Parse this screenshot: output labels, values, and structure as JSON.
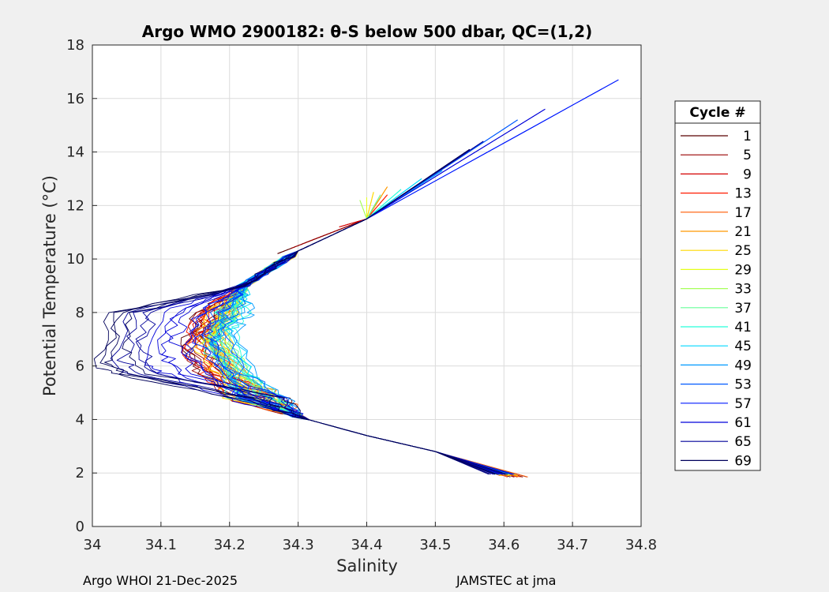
{
  "chart_data": {
    "type": "line",
    "title": "Argo WMO 2900182: θ-S below 500 dbar,  QC=(1,2)",
    "xlabel": "Salinity",
    "ylabel": "Potential Temperature (°C)",
    "xlim": [
      34,
      34.8
    ],
    "ylim": [
      0,
      18
    ],
    "xticks": [
      "34",
      "34.1",
      "34.2",
      "34.3",
      "34.4",
      "34.5",
      "34.6",
      "34.7",
      "34.8"
    ],
    "yticks": [
      "0",
      "2",
      "4",
      "6",
      "8",
      "10",
      "12",
      "14",
      "16",
      "18"
    ],
    "grid": true,
    "legend": {
      "title": "Cycle #",
      "placement": "right-outside",
      "entries": [
        "1",
        "5",
        "9",
        "13",
        "17",
        "21",
        "25",
        "29",
        "33",
        "37",
        "41",
        "45",
        "49",
        "53",
        "57",
        "61",
        "65",
        "69"
      ]
    },
    "series": [
      {
        "name": "1",
        "color": "#5a0000",
        "sal_min": 34.148,
        "t_min": 6.9,
        "s_top": 34.27,
        "t_top": 10.2,
        "s_bot": 34.62,
        "t_bot": 1.85
      },
      {
        "name": "5",
        "color": "#990000",
        "sal_min": 34.15,
        "t_min": 6.9,
        "s_top": 34.29,
        "t_top": 10.4,
        "s_bot": 34.62,
        "t_bot": 1.85
      },
      {
        "name": "9",
        "color": "#d40000",
        "sal_min": 34.155,
        "t_min": 7.0,
        "s_top": 34.36,
        "t_top": 11.2,
        "s_bot": 34.61,
        "t_bot": 1.9
      },
      {
        "name": "13",
        "color": "#ff1a00",
        "sal_min": 34.16,
        "t_min": 7.0,
        "s_top": 34.43,
        "t_top": 12.4,
        "s_bot": 34.61,
        "t_bot": 1.9
      },
      {
        "name": "17",
        "color": "#ff5a00",
        "sal_min": 34.165,
        "t_min": 7.0,
        "s_top": 34.42,
        "t_top": 12.3,
        "s_bot": 34.62,
        "t_bot": 1.85
      },
      {
        "name": "21",
        "color": "#ff9900",
        "sal_min": 34.17,
        "t_min": 7.1,
        "s_top": 34.43,
        "t_top": 12.7,
        "s_bot": 34.61,
        "t_bot": 1.9
      },
      {
        "name": "25",
        "color": "#ffd900",
        "sal_min": 34.175,
        "t_min": 7.1,
        "s_top": 34.41,
        "t_top": 12.5,
        "s_bot": 34.61,
        "t_bot": 1.9
      },
      {
        "name": "29",
        "color": "#e5ff1a",
        "sal_min": 34.178,
        "t_min": 7.1,
        "s_top": 34.4,
        "t_top": 12.3,
        "s_bot": 34.6,
        "t_bot": 1.95
      },
      {
        "name": "33",
        "color": "#a6ff59",
        "sal_min": 34.18,
        "t_min": 7.1,
        "s_top": 34.39,
        "t_top": 12.2,
        "s_bot": 34.6,
        "t_bot": 1.95
      },
      {
        "name": "37",
        "color": "#66ff99",
        "sal_min": 34.182,
        "t_min": 7.1,
        "s_top": 34.42,
        "t_top": 12.4,
        "s_bot": 34.6,
        "t_bot": 1.95
      },
      {
        "name": "41",
        "color": "#26ffd9",
        "sal_min": 34.185,
        "t_min": 7.0,
        "s_top": 34.45,
        "t_top": 12.6,
        "s_bot": 34.6,
        "t_bot": 1.95
      },
      {
        "name": "45",
        "color": "#00d9ff",
        "sal_min": 34.185,
        "t_min": 7.0,
        "s_top": 34.48,
        "t_top": 13.0,
        "s_bot": 34.6,
        "t_bot": 1.95
      },
      {
        "name": "49",
        "color": "#0099ff",
        "sal_min": 34.188,
        "t_min": 7.0,
        "s_top": 34.51,
        "t_top": 13.3,
        "s_bot": 34.6,
        "t_bot": 1.95
      },
      {
        "name": "53",
        "color": "#005aff",
        "sal_min": 34.17,
        "t_min": 6.9,
        "s_top": 34.62,
        "t_top": 15.2,
        "s_bot": 34.6,
        "t_bot": 1.95
      },
      {
        "name": "57",
        "color": "#001aff",
        "sal_min": 34.15,
        "t_min": 6.8,
        "s_top": 34.767,
        "t_top": 16.7,
        "s_bot": 34.6,
        "t_bot": 1.95
      },
      {
        "name": "61",
        "color": "#0000d9",
        "sal_min": 34.1,
        "t_min": 6.5,
        "s_top": 34.66,
        "t_top": 15.6,
        "s_bot": 34.6,
        "t_bot": 1.95
      },
      {
        "name": "65",
        "color": "#000099",
        "sal_min": 34.05,
        "t_min": 6.3,
        "s_top": 34.57,
        "t_top": 14.4,
        "s_bot": 34.59,
        "t_bot": 1.95
      },
      {
        "name": "69",
        "color": "#00005a",
        "sal_min": 34.02,
        "t_min": 6.2,
        "s_top": 34.55,
        "t_top": 14.1,
        "s_bot": 34.59,
        "t_bot": 1.95
      }
    ]
  },
  "footer": {
    "left": "Argo WHOI 21-Dec-2025",
    "right": "JAMSTEC at jma"
  }
}
